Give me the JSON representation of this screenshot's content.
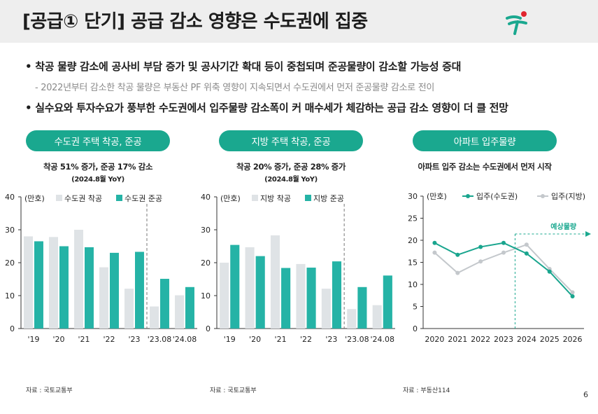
{
  "title": "[공급① 단기] 공급 감소 영향은 수도권에 집중",
  "bullets": [
    "•  착공 물량 감소에 공사비 부담 증가 및 공사기간 확대 등이 중첩되며 준공물량이 감소할 가능성 증대",
    "•  실수요와 투자수요가 풍부한 수도권에서 입주물량 감소폭이 커 매수세가 체감하는 공급 감소 영향이 더 클 전망"
  ],
  "subnote": "- 2022년부터 감소한 착공 물량은 부동산 PF 위축 영향이 지속되면서 수도권에서 먼저 준공물량 감소로 전이",
  "panels": [
    {
      "pill": "수도권 주택 착공, 준공",
      "caption": "착공 51% 증가, 준공 17% 감소",
      "caption2": "(2024.8월 YoY)",
      "source": "자료 : 국토교통부"
    },
    {
      "pill": "지방 주택 착공, 준공",
      "caption": "착공 20% 증가, 준공  28% 증가",
      "caption2": "(2024.8월 YoY)",
      "source": "자료 : 국토교통부"
    },
    {
      "pill": "아파트 입주물량",
      "caption": "아파트 입주 감소는 수도권에서 먼저 시작",
      "caption2": "",
      "source": "자료 : 부동산114"
    }
  ],
  "page_number": "6",
  "colors": {
    "accent": "#1aa88f",
    "start": "#dfe3e6",
    "complete": "#25b3a6",
    "line1": "#19a58e",
    "line2": "#c4c8cc",
    "logo_red": "#e0262f"
  },
  "chart_data": [
    {
      "type": "bar",
      "unit": "(만호)",
      "categories": [
        "'19",
        "'20",
        "'21",
        "'22",
        "'23",
        "'23.08",
        "'24.08"
      ],
      "series": [
        {
          "name": "수도권 착공",
          "values": [
            28,
            27.8,
            30,
            18.6,
            12.1,
            6.7,
            10.1
          ]
        },
        {
          "name": "수도권 준공",
          "values": [
            26.5,
            25,
            24.7,
            23,
            23.3,
            15.1,
            12.6
          ]
        }
      ],
      "ylim": [
        0,
        40
      ],
      "yticks": [
        0,
        10,
        20,
        30,
        40
      ],
      "divider_after": "'23"
    },
    {
      "type": "bar",
      "unit": "(만호)",
      "categories": [
        "'19",
        "'20",
        "'21",
        "'22",
        "'23",
        "'23.08",
        "'24.08"
      ],
      "series": [
        {
          "name": "지방 착공",
          "values": [
            20,
            24.7,
            28.3,
            19.6,
            12.1,
            5.9,
            7.1
          ]
        },
        {
          "name": "지방 준공",
          "values": [
            25.4,
            22,
            18.4,
            18.5,
            20.4,
            12.6,
            16.1
          ]
        }
      ],
      "ylim": [
        0,
        40
      ],
      "yticks": [
        0,
        10,
        20,
        30,
        40
      ],
      "divider_after": "'23"
    },
    {
      "type": "line",
      "unit": "(만호)",
      "x": [
        "2020",
        "2021",
        "2022",
        "2023",
        "2024",
        "2025",
        "2026"
      ],
      "series": [
        {
          "name": "입주(수도권)",
          "values": [
            19.4,
            16.7,
            18.5,
            19.4,
            17,
            12.9,
            7.3
          ]
        },
        {
          "name": "입주(지방)",
          "values": [
            17.2,
            12.6,
            15.2,
            17.2,
            19,
            13.5,
            8.2
          ]
        }
      ],
      "ylim": [
        0,
        30
      ],
      "yticks": [
        0,
        5,
        10,
        15,
        20,
        25,
        30
      ],
      "forecast_label": "예상물량",
      "forecast_from": "2024"
    }
  ]
}
